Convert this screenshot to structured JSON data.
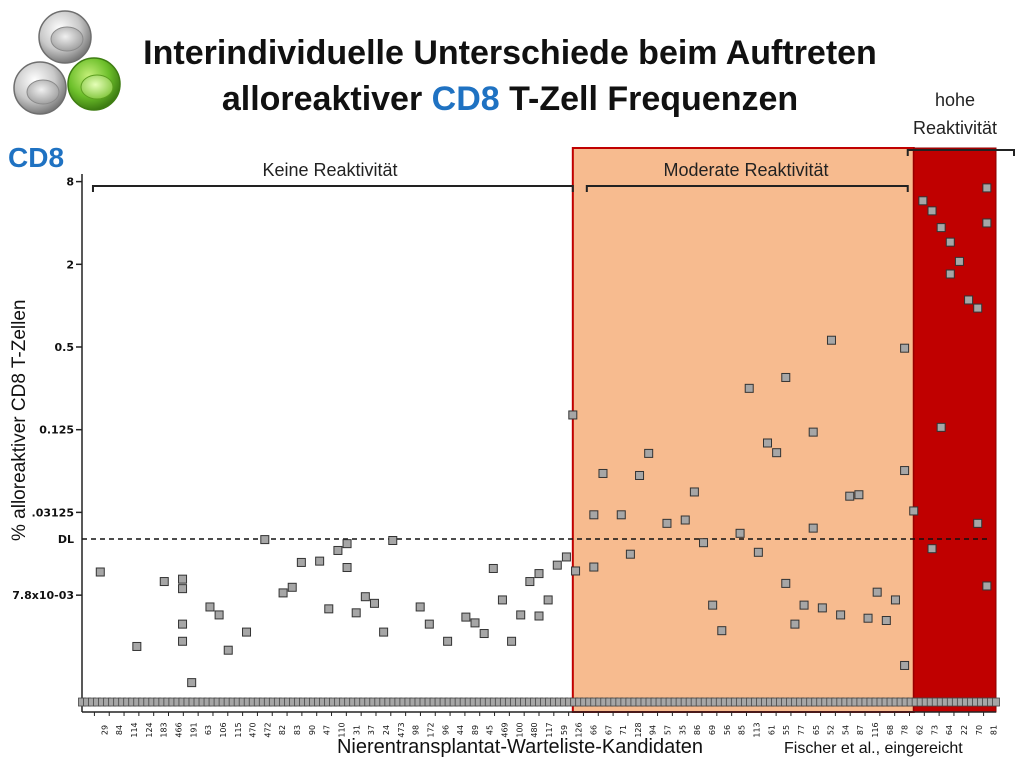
{
  "title_line1": "Interindividuelle Unterschiede beim Auftreten",
  "title_line2_a": "alloreaktiver ",
  "title_line2_b": "CD8",
  "title_line2_c": " T-Zell Frequenzen",
  "panel_tag": "CD8",
  "credit": "Fischer et al., eingereicht",
  "colors": {
    "moderate": "#f7bb8f",
    "high": "#c00000",
    "accent": "#1f72c2",
    "marker": "#a6a6a6"
  },
  "icon": "cells-logo-icon",
  "chart_data": {
    "type": "scatter",
    "ylabel": "% alloreaktiver CD8 T-Zellen",
    "xlabel": "Nierentransplantat-Warteliste-Kandidaten",
    "y_scale": "log2",
    "ylim": [
      0.0011,
      8.5
    ],
    "yticks": [
      8,
      2,
      0.5,
      0.125,
      0.03125,
      0.0078
    ],
    "ytick_labels": [
      "8",
      "2",
      "0.5",
      "0.125",
      ".03125",
      "7.8x10-03"
    ],
    "detection_limit": {
      "label": "DL",
      "value": 0.02
    },
    "groups": [
      {
        "label": "Keine Reaktivität",
        "x_from": 0,
        "x_to": 0.537
      },
      {
        "label": "Moderate Reaktivität",
        "x_from": 0.537,
        "x_to": 0.91
      },
      {
        "label": "hohe Reaktivität",
        "x_from": 0.91,
        "x_to": 1.0
      }
    ],
    "x_tick_labels": [
      "29",
      "84",
      "114",
      "124",
      "183",
      "466",
      "191",
      "63",
      "106",
      "115",
      "470",
      "472",
      "82",
      "83",
      "90",
      "47",
      "110",
      "31",
      "37",
      "24",
      "473",
      "98",
      "172",
      "96",
      "44",
      "89",
      "45",
      "469",
      "100",
      "480",
      "117",
      "59",
      "126",
      "66",
      "67",
      "71",
      "128",
      "94",
      "57",
      "35",
      "86",
      "69",
      "56",
      "85",
      "113",
      "61",
      "55",
      "77",
      "65",
      "52",
      "54",
      "87",
      "116",
      "68",
      "78",
      "62",
      "73",
      "64",
      "22",
      "70",
      "81"
    ],
    "baseline_value": 0.0013,
    "points": [
      [
        0.02,
        0.0115
      ],
      [
        0.06,
        0.0033
      ],
      [
        0.09,
        0.0098
      ],
      [
        0.11,
        0.0102
      ],
      [
        0.11,
        0.0087
      ],
      [
        0.11,
        0.0048
      ],
      [
        0.11,
        0.0036
      ],
      [
        0.12,
        0.0018
      ],
      [
        0.14,
        0.0064
      ],
      [
        0.15,
        0.0056
      ],
      [
        0.16,
        0.0031
      ],
      [
        0.18,
        0.0042
      ],
      [
        0.2,
        0.0198
      ],
      [
        0.22,
        0.0081
      ],
      [
        0.23,
        0.0089
      ],
      [
        0.24,
        0.0135
      ],
      [
        0.26,
        0.0138
      ],
      [
        0.27,
        0.0062
      ],
      [
        0.28,
        0.0165
      ],
      [
        0.29,
        0.0185
      ],
      [
        0.29,
        0.0124
      ],
      [
        0.3,
        0.0058
      ],
      [
        0.31,
        0.0076
      ],
      [
        0.32,
        0.0068
      ],
      [
        0.33,
        0.0042
      ],
      [
        0.34,
        0.0195
      ],
      [
        0.37,
        0.0064
      ],
      [
        0.38,
        0.0048
      ],
      [
        0.4,
        0.0036
      ],
      [
        0.42,
        0.0054
      ],
      [
        0.43,
        0.0049
      ],
      [
        0.44,
        0.0041
      ],
      [
        0.45,
        0.0122
      ],
      [
        0.46,
        0.0072
      ],
      [
        0.47,
        0.0036
      ],
      [
        0.48,
        0.0056
      ],
      [
        0.49,
        0.0098
      ],
      [
        0.5,
        0.0112
      ],
      [
        0.5,
        0.0055
      ],
      [
        0.51,
        0.0072
      ],
      [
        0.52,
        0.0129
      ],
      [
        0.53,
        0.0148
      ],
      [
        0.54,
        0.0117
      ],
      [
        0.537,
        0.16
      ],
      [
        0.56,
        0.03
      ],
      [
        0.56,
        0.0125
      ],
      [
        0.57,
        0.06
      ],
      [
        0.59,
        0.03
      ],
      [
        0.6,
        0.0155
      ],
      [
        0.61,
        0.058
      ],
      [
        0.62,
        0.084
      ],
      [
        0.64,
        0.026
      ],
      [
        0.66,
        0.0275
      ],
      [
        0.67,
        0.044
      ],
      [
        0.68,
        0.0188
      ],
      [
        0.69,
        0.0066
      ],
      [
        0.7,
        0.0043
      ],
      [
        0.72,
        0.022
      ],
      [
        0.73,
        0.25
      ],
      [
        0.74,
        0.016
      ],
      [
        0.75,
        0.1
      ],
      [
        0.76,
        0.085
      ],
      [
        0.77,
        0.0095
      ],
      [
        0.77,
        0.3
      ],
      [
        0.78,
        0.0048
      ],
      [
        0.79,
        0.0066
      ],
      [
        0.8,
        0.12
      ],
      [
        0.8,
        0.024
      ],
      [
        0.81,
        0.0063
      ],
      [
        0.82,
        0.56
      ],
      [
        0.83,
        0.0056
      ],
      [
        0.84,
        0.041
      ],
      [
        0.85,
        0.042
      ],
      [
        0.86,
        0.0053
      ],
      [
        0.87,
        0.0082
      ],
      [
        0.88,
        0.0051
      ],
      [
        0.89,
        0.0072
      ],
      [
        0.9,
        0.0024
      ],
      [
        0.9,
        0.49
      ],
      [
        0.9,
        0.063
      ],
      [
        0.91,
        0.032
      ],
      [
        0.92,
        5.8
      ],
      [
        0.93,
        4.9
      ],
      [
        0.94,
        3.7
      ],
      [
        0.95,
        2.9
      ],
      [
        0.96,
        2.1
      ],
      [
        0.97,
        1.1
      ],
      [
        0.98,
        0.96
      ],
      [
        0.98,
        0.026
      ],
      [
        0.99,
        7.2
      ],
      [
        0.99,
        4.0
      ],
      [
        0.94,
        0.13
      ],
      [
        0.93,
        0.017
      ],
      [
        0.95,
        1.7
      ],
      [
        0.99,
        0.0091
      ]
    ]
  }
}
